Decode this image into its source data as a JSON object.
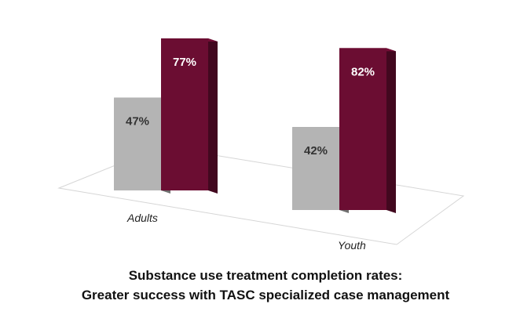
{
  "chart_data": {
    "type": "bar",
    "categories": [
      "Adults",
      "Youth"
    ],
    "series": [
      {
        "values": [
          47,
          42
        ],
        "color": "#b4b4b4",
        "label_color": "#333333"
      },
      {
        "values": [
          77,
          82
        ],
        "color": "#6b0d32",
        "label_color": "#ffffff"
      }
    ],
    "value_suffix": "%",
    "ylim": [
      0,
      100
    ],
    "title_lines": [
      "Substance use treatment completion rates:",
      "Greater success with TASC specialized case management"
    ]
  }
}
